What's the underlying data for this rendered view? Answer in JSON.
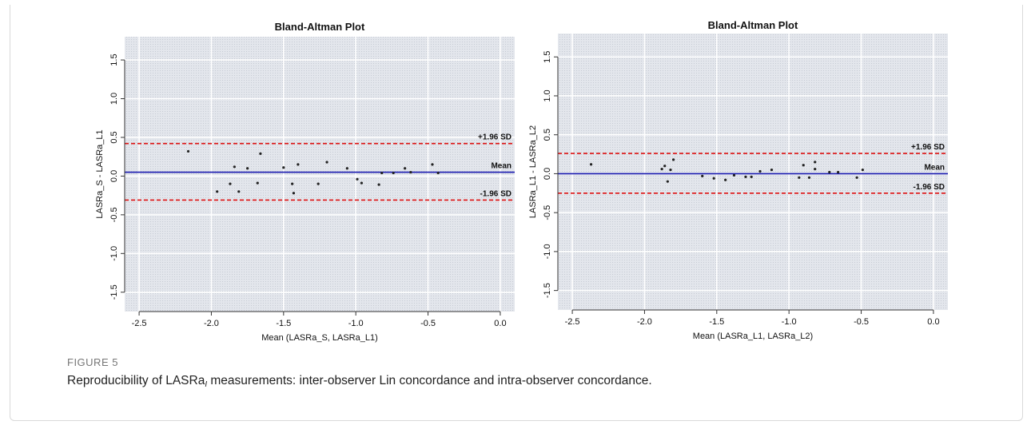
{
  "figure": {
    "label": "FIGURE 5",
    "caption_before": "Reproducibility of LASRa",
    "caption_sub": "I",
    "caption_after": " measurements: inter-observer Lin concordance and intra-observer concordance."
  },
  "colors": {
    "panel_bg": "#e6e9ef",
    "grid": "#ffffff",
    "mean_line": "#1a1ab0",
    "limit_line": "#dd1111",
    "points": "#222222"
  },
  "chart_data": [
    {
      "type": "scatter",
      "title": "Bland-Altman Plot",
      "xlabel": "Mean (LASRa_S, LASRa_L1)",
      "ylabel": "LASRa_S - LASRa_L1",
      "xlim": [
        -2.6,
        0.1
      ],
      "ylim": [
        -1.75,
        1.8
      ],
      "xticks": [
        -2.5,
        -2.0,
        -1.5,
        -1.0,
        -0.5,
        0.0
      ],
      "xtick_labels": [
        "-2.5",
        "-2.0",
        "-1.5",
        "-1.0",
        "-0.5",
        "0.0"
      ],
      "yticks": [
        -1.5,
        -1.0,
        -0.5,
        0.0,
        0.5,
        1.0,
        1.5
      ],
      "ytick_labels": [
        "-1.5",
        "-1.0",
        "-0.5",
        "0.0",
        "0.5",
        "1.0",
        "1.5"
      ],
      "mean": 0.05,
      "upper_loa": 0.42,
      "lower_loa": -0.31,
      "mean_label": "Mean",
      "upper_label": "+1.96 SD",
      "lower_label": "-1.96 SD",
      "grid": true,
      "points": [
        {
          "x": -2.16,
          "y": 0.32
        },
        {
          "x": -1.96,
          "y": -0.2
        },
        {
          "x": -1.87,
          "y": -0.1
        },
        {
          "x": -1.84,
          "y": 0.12
        },
        {
          "x": -1.81,
          "y": -0.2
        },
        {
          "x": -1.75,
          "y": 0.1
        },
        {
          "x": -1.68,
          "y": -0.09
        },
        {
          "x": -1.66,
          "y": 0.29
        },
        {
          "x": -1.5,
          "y": 0.11
        },
        {
          "x": -1.44,
          "y": -0.1
        },
        {
          "x": -1.43,
          "y": -0.22
        },
        {
          "x": -1.4,
          "y": 0.15
        },
        {
          "x": -1.26,
          "y": -0.1
        },
        {
          "x": -1.2,
          "y": 0.18
        },
        {
          "x": -1.06,
          "y": 0.1
        },
        {
          "x": -0.99,
          "y": -0.04
        },
        {
          "x": -0.96,
          "y": -0.09
        },
        {
          "x": -0.84,
          "y": -0.11
        },
        {
          "x": -0.82,
          "y": 0.04
        },
        {
          "x": -0.74,
          "y": 0.04
        },
        {
          "x": -0.66,
          "y": 0.1
        },
        {
          "x": -0.62,
          "y": 0.05
        },
        {
          "x": -0.47,
          "y": 0.15
        },
        {
          "x": -0.43,
          "y": 0.04
        }
      ]
    },
    {
      "type": "scatter",
      "title": "Bland-Altman Plot",
      "xlabel": "Mean (LASRa_L1, LASRa_L2)",
      "ylabel": "LASRa_L1 - LASRa_L2",
      "xlim": [
        -2.6,
        0.1
      ],
      "ylim": [
        -1.75,
        1.8
      ],
      "xticks": [
        -2.5,
        -2.0,
        -1.5,
        -1.0,
        -0.5,
        0.0
      ],
      "xtick_labels": [
        "-2.5",
        "-2.0",
        "-1.5",
        "-1.0",
        "-0.5",
        "0.0"
      ],
      "yticks": [
        -1.5,
        -1.0,
        -0.5,
        0.0,
        0.5,
        1.0,
        1.5
      ],
      "ytick_labels": [
        "-1.5",
        "-1.0",
        "-0.5",
        "0.0",
        "0.5",
        "1.0",
        "1.5"
      ],
      "mean": 0.0,
      "upper_loa": 0.26,
      "lower_loa": -0.25,
      "mean_label": "Mean",
      "upper_label": "+1.96 SD",
      "lower_label": "-1.96 SD",
      "grid": true,
      "points": [
        {
          "x": -2.37,
          "y": 0.12
        },
        {
          "x": -1.88,
          "y": 0.06
        },
        {
          "x": -1.86,
          "y": 0.1
        },
        {
          "x": -1.84,
          "y": -0.1
        },
        {
          "x": -1.82,
          "y": 0.05
        },
        {
          "x": -1.8,
          "y": 0.18
        },
        {
          "x": -1.6,
          "y": -0.03
        },
        {
          "x": -1.52,
          "y": -0.06
        },
        {
          "x": -1.44,
          "y": -0.08
        },
        {
          "x": -1.38,
          "y": -0.02
        },
        {
          "x": -1.3,
          "y": -0.04
        },
        {
          "x": -1.26,
          "y": -0.04
        },
        {
          "x": -1.2,
          "y": 0.03
        },
        {
          "x": -1.12,
          "y": 0.05
        },
        {
          "x": -0.93,
          "y": -0.05
        },
        {
          "x": -0.9,
          "y": 0.11
        },
        {
          "x": -0.86,
          "y": -0.05
        },
        {
          "x": -0.82,
          "y": 0.06
        },
        {
          "x": -0.82,
          "y": 0.15
        },
        {
          "x": -0.72,
          "y": 0.02
        },
        {
          "x": -0.66,
          "y": 0.02
        },
        {
          "x": -0.53,
          "y": -0.05
        },
        {
          "x": -0.49,
          "y": 0.05
        }
      ]
    }
  ]
}
